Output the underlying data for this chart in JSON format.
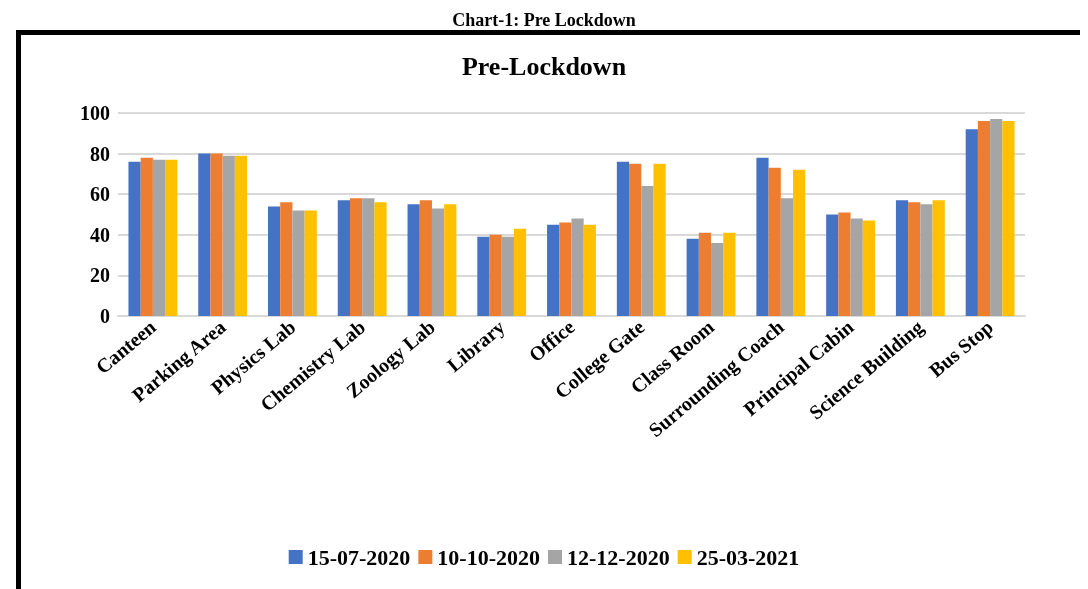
{
  "chart_data": {
    "type": "bar",
    "title": "Chart-1: Pre Lockdown",
    "subtitle": "Pre-Lockdown",
    "categories": [
      "Canteen",
      "Parking Area",
      "Physics Lab",
      "Chemistry Lab",
      "Zoology Lab",
      "Library",
      "Office",
      "College Gate",
      "Class Room",
      "Surrounding Coach",
      "Principal Cabin",
      "Science Building",
      "Bus Stop"
    ],
    "series": [
      {
        "name": "15-07-2020",
        "color": "#4472c4",
        "values": [
          76,
          80,
          54,
          57,
          55,
          39,
          45,
          76,
          38,
          78,
          50,
          57,
          92
        ]
      },
      {
        "name": "10-10-2020",
        "color": "#ed7d31",
        "values": [
          78,
          80,
          56,
          58,
          57,
          40,
          46,
          75,
          41,
          73,
          51,
          56,
          96
        ]
      },
      {
        "name": "12-12-2020",
        "color": "#a5a5a5",
        "values": [
          77,
          79,
          52,
          58,
          53,
          39,
          48,
          64,
          36,
          58,
          48,
          55,
          97
        ]
      },
      {
        "name": "25-03-2021",
        "color": "#ffc000",
        "values": [
          77,
          79,
          52,
          56,
          55,
          43,
          45,
          75,
          41,
          72,
          47,
          57,
          96
        ]
      }
    ],
    "ylim": [
      0,
      100
    ],
    "yticks": [
      0,
      20,
      40,
      60,
      80,
      100
    ],
    "grid": "y",
    "legend": "bottom"
  }
}
